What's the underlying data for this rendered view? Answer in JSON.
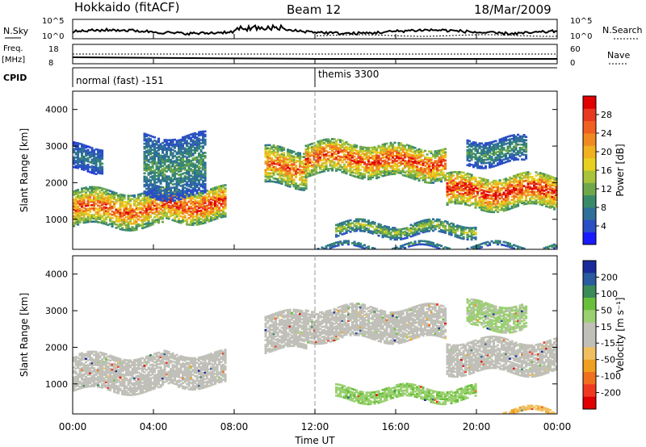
{
  "header": {
    "station": "Hokkaido (fitACF)",
    "beam": "Beam 12",
    "date": "18/Mar/2009"
  },
  "summary_panel": {
    "nsky_label": "N.Sky",
    "nsearch_label": "N.Search",
    "freq_label_line1": "Freq.",
    "freq_label_line2": "[MHz]",
    "nave_label": "Nave",
    "cpid_label": "CPID",
    "noise_ticks": [
      "10^5",
      "10^0"
    ],
    "freq_ticks": [
      "18",
      "8"
    ],
    "nave_ticks": [
      "60",
      "0"
    ],
    "cpid_segments": [
      {
        "start_hour": 0,
        "label": "normal (fast) -151"
      },
      {
        "start_hour": 12,
        "label": "themis 3300"
      }
    ]
  },
  "colorbars": {
    "power": {
      "title": "Power [dB]",
      "ticks": [
        "4",
        "8",
        "12",
        "16",
        "20",
        "24",
        "28"
      ],
      "colors": [
        "#1a1aff",
        "#2a4fc4",
        "#2f6f9a",
        "#3a8a6a",
        "#6fa84a",
        "#a8c43a",
        "#e8d020",
        "#f0b020",
        "#f08a20",
        "#f06020",
        "#e83a20",
        "#e00000"
      ]
    },
    "velocity": {
      "title": "Velocity [m s⁻¹]",
      "ticks": [
        "200",
        "100",
        "50",
        "15",
        "-15",
        "-50",
        "-100",
        "-200"
      ],
      "colors": [
        "#1a2a9a",
        "#2a5aa0",
        "#3a8a5a",
        "#6abf3a",
        "#9ad070",
        "#c0c0b8",
        "#c0c0b8",
        "#f0c060",
        "#f0a020",
        "#f07020",
        "#f03a20",
        "#e00000"
      ]
    }
  },
  "axes": {
    "ylabel": "Slant Range [km]",
    "xlabel": "Time UT",
    "y_ticks": [
      "1000",
      "2000",
      "3000",
      "4000"
    ],
    "x_ticks": [
      "00:00",
      "04:00",
      "08:00",
      "12:00",
      "16:00",
      "20:00",
      "00:00"
    ]
  },
  "chart_data": [
    {
      "type": "heatmap",
      "title": "Power [dB]",
      "xlabel": "Time UT",
      "ylabel": "Slant Range [km]",
      "xlim_hours": [
        0,
        24
      ],
      "ylim_km": [
        180,
        4500
      ],
      "zlim": [
        0,
        30
      ],
      "x_ticks": [
        "00:00",
        "04:00",
        "08:00",
        "12:00",
        "16:00",
        "20:00",
        "00:00"
      ],
      "y_ticks": [
        1000,
        2000,
        3000,
        4000
      ],
      "bands": [
        {
          "t0": 0.0,
          "t1": 4.5,
          "r0": 800,
          "r1": 1750,
          "peak": 25
        },
        {
          "t0": 4.5,
          "t1": 7.5,
          "r0": 950,
          "r1": 1850,
          "peak": 27
        },
        {
          "t0": 0.0,
          "t1": 1.5,
          "r0": 2300,
          "r1": 3000,
          "peak": 8
        },
        {
          "t0": 3.5,
          "t1": 6.5,
          "r0": 1600,
          "r1": 3300,
          "peak": 10
        },
        {
          "t0": 9.5,
          "t1": 11.5,
          "r0": 1900,
          "r1": 2900,
          "peak": 24
        },
        {
          "t0": 11.5,
          "t1": 15.0,
          "r0": 2200,
          "r1": 3100,
          "peak": 26
        },
        {
          "t0": 15.0,
          "t1": 18.5,
          "r0": 2100,
          "r1": 3000,
          "peak": 26
        },
        {
          "t0": 18.5,
          "t1": 24.0,
          "r0": 1300,
          "r1": 2200,
          "peak": 28
        },
        {
          "t0": 19.5,
          "t1": 22.5,
          "r0": 2500,
          "r1": 3200,
          "peak": 10
        },
        {
          "t0": 13.0,
          "t1": 20.0,
          "r0": 550,
          "r1": 900,
          "peak": 14
        },
        {
          "t0": 12.0,
          "t1": 24.0,
          "r0": 180,
          "r1": 300,
          "peak": 10
        }
      ]
    },
    {
      "type": "heatmap",
      "title": "Velocity [m s⁻¹]",
      "xlabel": "Time UT",
      "ylabel": "Slant Range [km]",
      "xlim_hours": [
        0,
        24
      ],
      "ylim_km": [
        180,
        4500
      ],
      "zlim": [
        -200,
        200
      ],
      "x_ticks": [
        "00:00",
        "04:00",
        "08:00",
        "12:00",
        "16:00",
        "20:00",
        "00:00"
      ],
      "y_ticks": [
        1000,
        2000,
        3000,
        4000
      ],
      "bands": [
        {
          "t0": 0.0,
          "t1": 4.5,
          "r0": 800,
          "r1": 1750,
          "v": 0
        },
        {
          "t0": 4.5,
          "t1": 7.5,
          "r0": 950,
          "r1": 1850,
          "v": 0
        },
        {
          "t0": 9.5,
          "t1": 11.5,
          "r0": 1900,
          "r1": 2900,
          "v": 0
        },
        {
          "t0": 11.5,
          "t1": 18.5,
          "r0": 2200,
          "r1": 3100,
          "v": 0
        },
        {
          "t0": 18.5,
          "t1": 24.0,
          "r0": 1300,
          "r1": 2200,
          "v": 0
        },
        {
          "t0": 13.0,
          "t1": 20.0,
          "r0": 550,
          "r1": 900,
          "v": 60
        },
        {
          "t0": 19.5,
          "t1": 22.5,
          "r0": 2500,
          "r1": 3200,
          "v": 40
        },
        {
          "t0": 20.5,
          "t1": 24.0,
          "r0": 180,
          "r1": 300,
          "v": -60
        }
      ]
    }
  ]
}
